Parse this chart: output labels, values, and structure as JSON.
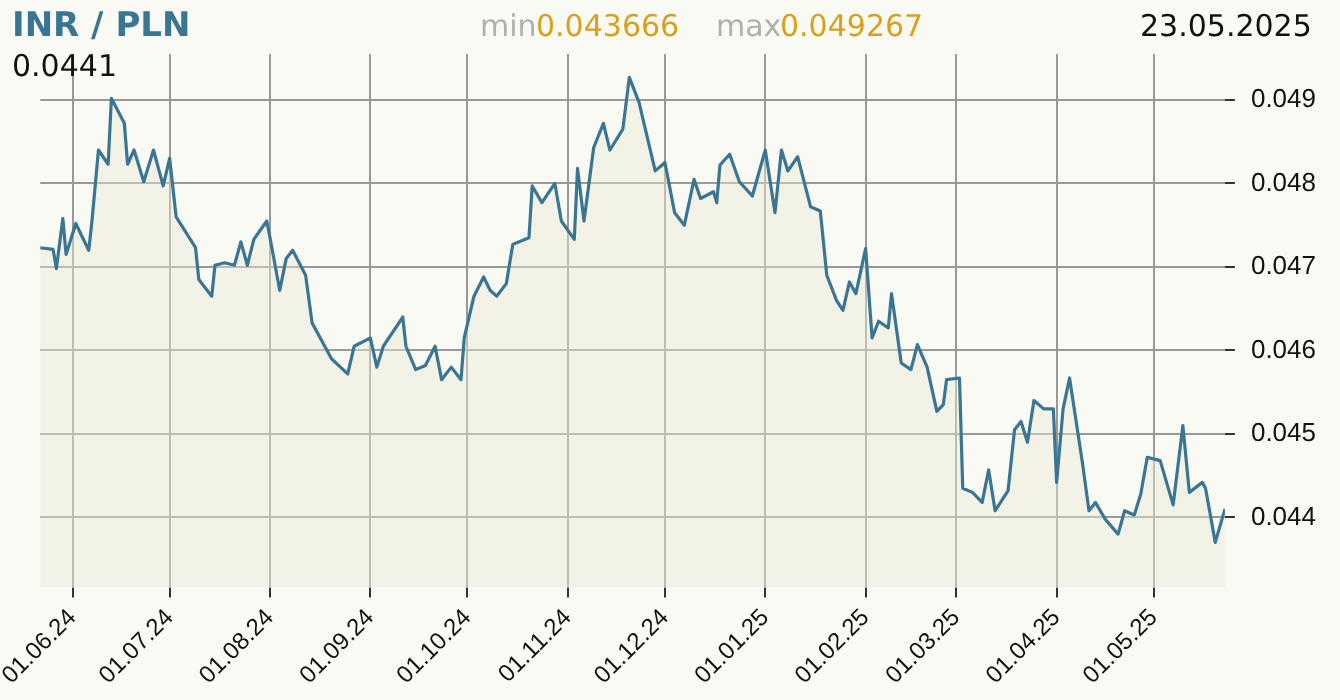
{
  "chart_data": {
    "type": "area",
    "title": "INR / PLN",
    "annotations": [
      "min",
      "0.043666",
      "max",
      "0.049267",
      "23.05.2025",
      "0.0441"
    ],
    "x": [
      "2024-05-22",
      "2024-05-26",
      "2024-05-27",
      "2024-05-29",
      "2024-05-30",
      "2024-06-02",
      "2024-06-06",
      "2024-06-07",
      "2024-06-09",
      "2024-06-12",
      "2024-06-13",
      "2024-06-17",
      "2024-06-18",
      "2024-06-20",
      "2024-06-23",
      "2024-06-26",
      "2024-06-29",
      "2024-07-01",
      "2024-07-03",
      "2024-07-09",
      "2024-07-10",
      "2024-07-14",
      "2024-07-15",
      "2024-07-18",
      "2024-07-21",
      "2024-07-23",
      "2024-07-25",
      "2024-07-27",
      "2024-07-31",
      "2024-08-01",
      "2024-08-04",
      "2024-08-06",
      "2024-08-08",
      "2024-08-12",
      "2024-08-14",
      "2024-08-20",
      "2024-08-25",
      "2024-08-27",
      "2024-09-01",
      "2024-09-03",
      "2024-09-05",
      "2024-09-11",
      "2024-09-12",
      "2024-09-15",
      "2024-09-18",
      "2024-09-21",
      "2024-09-23",
      "2024-09-26",
      "2024-09-29",
      "2024-09-30",
      "2024-10-03",
      "2024-10-06",
      "2024-10-08",
      "2024-10-10",
      "2024-10-13",
      "2024-10-15",
      "2024-10-20",
      "2024-10-21",
      "2024-10-24",
      "2024-10-28",
      "2024-10-30",
      "2024-11-03",
      "2024-11-04",
      "2024-11-06",
      "2024-11-09",
      "2024-11-12",
      "2024-11-14",
      "2024-11-18",
      "2024-11-20",
      "2024-11-23",
      "2024-11-28",
      "2024-12-01",
      "2024-12-04",
      "2024-12-07",
      "2024-12-10",
      "2024-12-12",
      "2024-12-16",
      "2024-12-17",
      "2024-12-18",
      "2024-12-21",
      "2024-12-24",
      "2024-12-28",
      "2025-01-01",
      "2025-01-04",
      "2025-01-06",
      "2025-01-08",
      "2025-01-11",
      "2025-01-15",
      "2025-01-18",
      "2025-01-20",
      "2025-01-23",
      "2025-01-25",
      "2025-01-27",
      "2025-01-29",
      "2025-02-01",
      "2025-02-03",
      "2025-02-05",
      "2025-02-08",
      "2025-02-09",
      "2025-02-12",
      "2025-02-15",
      "2025-02-17",
      "2025-02-20",
      "2025-02-23",
      "2025-02-25",
      "2025-02-26",
      "2025-03-02",
      "2025-03-03",
      "2025-03-06",
      "2025-03-09",
      "2025-03-11",
      "2025-03-13",
      "2025-03-17",
      "2025-03-19",
      "2025-03-21",
      "2025-03-23",
      "2025-03-25",
      "2025-03-28",
      "2025-03-31",
      "2025-04-01",
      "2025-04-03",
      "2025-04-05",
      "2025-04-09",
      "2025-04-11",
      "2025-04-13",
      "2025-04-16",
      "2025-04-20",
      "2025-04-22",
      "2025-04-25",
      "2025-04-27",
      "2025-04-29",
      "2025-05-03",
      "2025-05-07",
      "2025-05-10",
      "2025-05-12",
      "2025-05-16",
      "2025-05-17",
      "2025-05-19",
      "2025-05-20",
      "2025-05-23"
    ],
    "series": [
      {
        "color": "#3a7694",
        "values": [
          0.04723,
          0.04721,
          0.04698,
          0.04758,
          0.04715,
          0.04752,
          0.0472,
          0.04755,
          0.0484,
          0.04823,
          0.04902,
          0.04872,
          0.04823,
          0.0484,
          0.04802,
          0.0484,
          0.04797,
          0.0483,
          0.0476,
          0.04723,
          0.04685,
          0.04665,
          0.04702,
          0.04705,
          0.04702,
          0.0473,
          0.04702,
          0.04733,
          0.04755,
          0.04735,
          0.04672,
          0.0471,
          0.0472,
          0.0469,
          0.04633,
          0.0459,
          0.04572,
          0.04605,
          0.04615,
          0.0458,
          0.04605,
          0.0464,
          0.04605,
          0.04577,
          0.04582,
          0.04605,
          0.04565,
          0.0458,
          0.04565,
          0.04615,
          0.04665,
          0.04688,
          0.04672,
          0.04665,
          0.0468,
          0.04727,
          0.04735,
          0.04797,
          0.04777,
          0.048,
          0.04755,
          0.04733,
          0.04818,
          0.04755,
          0.04843,
          0.04872,
          0.0484,
          0.04865,
          0.04927,
          0.04897,
          0.04815,
          0.04825,
          0.04765,
          0.0475,
          0.04805,
          0.04782,
          0.0479,
          0.04777,
          0.04822,
          0.04835,
          0.04802,
          0.04785,
          0.0484,
          0.04765,
          0.0484,
          0.04815,
          0.04832,
          0.04772,
          0.04767,
          0.0469,
          0.0466,
          0.04648,
          0.04682,
          0.04668,
          0.04722,
          0.04615,
          0.04635,
          0.04627,
          0.04668,
          0.04585,
          0.04577,
          0.04607,
          0.0458,
          0.04527,
          0.04535,
          0.04565,
          0.04567,
          0.04435,
          0.0443,
          0.04418,
          0.04457,
          0.04408,
          0.04432,
          0.04505,
          0.04515,
          0.0449,
          0.0454,
          0.0453,
          0.0453,
          0.04442,
          0.0453,
          0.04567,
          0.04465,
          0.04408,
          0.04418,
          0.04398,
          0.0438,
          0.04408,
          0.04403,
          0.04428,
          0.04472,
          0.04468,
          0.04415,
          0.0451,
          0.0443,
          0.04442,
          0.04435,
          0.04392,
          0.0437,
          0.0441
        ]
      }
    ],
    "xlim": [
      "2024-05-22",
      "2025-05-23"
    ],
    "xticks": [
      {
        "value": "2024-06-01",
        "label": "01.06.24"
      },
      {
        "value": "2024-07-01",
        "label": "01.07.24"
      },
      {
        "value": "2024-08-01",
        "label": "01.08.24"
      },
      {
        "value": "2024-09-01",
        "label": "01.09.24"
      },
      {
        "value": "2024-10-01",
        "label": "01.10.24"
      },
      {
        "value": "2024-11-01",
        "label": "01.11.24"
      },
      {
        "value": "2024-12-01",
        "label": "01.12.24"
      },
      {
        "value": "2025-01-01",
        "label": "01.01.25"
      },
      {
        "value": "2025-02-01",
        "label": "01.02.25"
      },
      {
        "value": "2025-03-01",
        "label": "01.03.25"
      },
      {
        "value": "2025-04-01",
        "label": "01.04.25"
      },
      {
        "value": "2025-05-01",
        "label": "01.05.25"
      }
    ],
    "ylim": [
      0.04316,
      0.04955
    ],
    "yticks": [
      0.044,
      0.045,
      0.046,
      0.047,
      0.048,
      0.049
    ],
    "grid": true,
    "legend": false,
    "marker": "none",
    "line_style": "solid"
  }
}
